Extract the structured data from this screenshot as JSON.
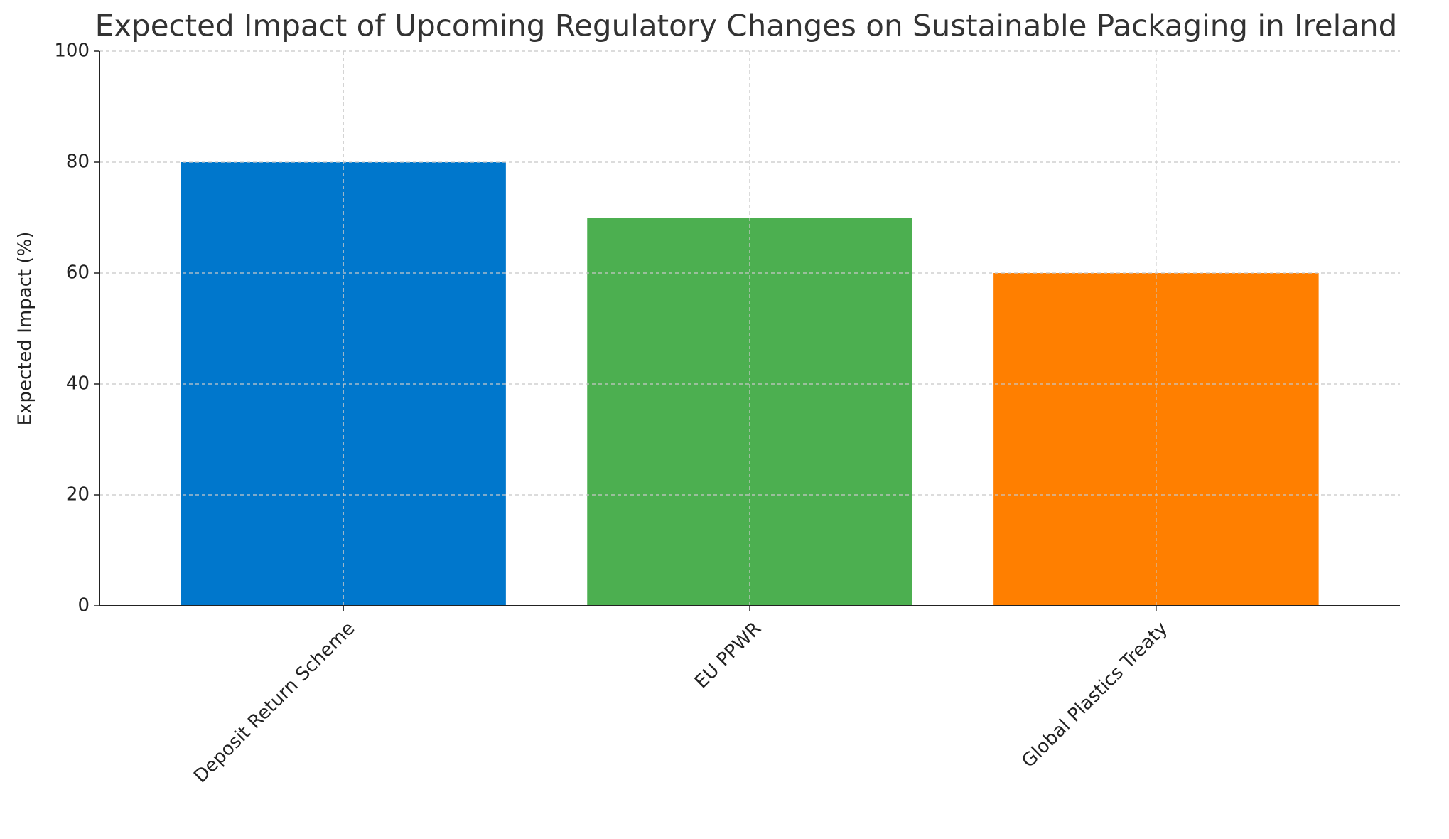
{
  "chart_data": {
    "type": "bar",
    "title": "Expected Impact of Upcoming Regulatory Changes on Sustainable Packaging in Ireland",
    "y_label": "Expected Impact (%)",
    "categories": [
      "Deposit Return Scheme",
      "EU PPWR",
      "Global Plastics Treaty"
    ],
    "values": [
      80,
      70,
      60
    ],
    "colors": [
      "#0077cc",
      "#4caf50",
      "#ff7f00"
    ],
    "ylim": [
      0,
      100
    ],
    "yticks": [
      0,
      20,
      40,
      60,
      80,
      100
    ],
    "grid": true
  }
}
